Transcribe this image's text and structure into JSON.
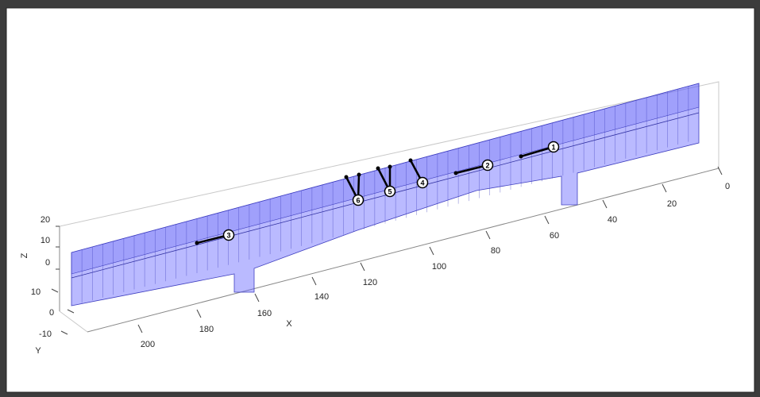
{
  "axes": {
    "x_label": "X",
    "y_label": "Y",
    "z_label": "Z",
    "x_ticks": [
      0,
      20,
      40,
      60,
      80,
      100,
      120,
      140,
      160,
      180,
      200
    ],
    "y_ticks": [
      10,
      0,
      -10
    ],
    "z_ticks": [
      20,
      10,
      0
    ]
  },
  "nodes": [
    "1",
    "2",
    "3",
    "4",
    "5",
    "6"
  ]
}
